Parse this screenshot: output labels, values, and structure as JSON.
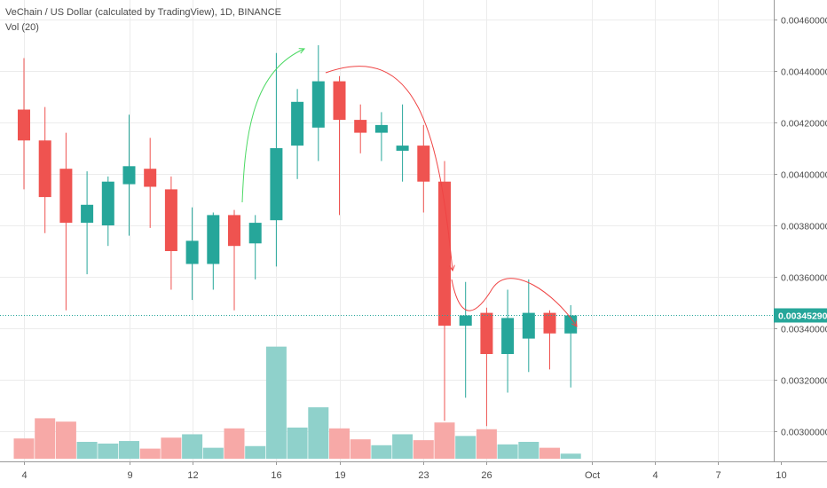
{
  "header": {
    "title": "VeChain / US Dollar (calculated by TradingView), 1D, BINANCE",
    "volume_label": "Vol (20)"
  },
  "colors": {
    "up": "#26a69a",
    "down": "#ef5350",
    "vol_up": "#8fd1cb",
    "vol_down": "#f7a9a7",
    "arrow_up": "#4cd964",
    "arrow_down": "#ef4444",
    "price_line": "#26a69a",
    "grid": "#ececec",
    "axis_text": "#4a4a4a"
  },
  "chart_data": {
    "type": "candlestick",
    "price_axis": {
      "ticks": [
        "0.00300000",
        "0.00320000",
        "0.00340000",
        "0.00360000",
        "0.00380000",
        "0.00400000",
        "0.00420000",
        "0.00440000",
        "0.00460000"
      ],
      "current_price": "0.00345290"
    },
    "x_axis": {
      "ticks": [
        {
          "label": "4",
          "day": 4
        },
        {
          "label": "9",
          "day": 9
        },
        {
          "label": "12",
          "day": 12
        },
        {
          "label": "16",
          "day": 16
        },
        {
          "label": "19",
          "day": 19
        },
        {
          "label": "23",
          "day": 23
        },
        {
          "label": "26",
          "day": 26
        },
        {
          "label": "Oct",
          "day": 31
        },
        {
          "label": "4",
          "day": 34
        },
        {
          "label": "7",
          "day": 37
        },
        {
          "label": "10",
          "day": 40
        }
      ]
    },
    "candles": [
      {
        "day": 4,
        "o": 0.00425,
        "h": 0.00445,
        "l": 0.00394,
        "c": 0.00413,
        "v": 2.4
      },
      {
        "day": 5,
        "o": 0.00413,
        "h": 0.00426,
        "l": 0.00377,
        "c": 0.00391,
        "v": 4.8
      },
      {
        "day": 6,
        "o": 0.00402,
        "h": 0.00416,
        "l": 0.00347,
        "c": 0.00381,
        "v": 4.4
      },
      {
        "day": 7,
        "o": 0.00381,
        "h": 0.00401,
        "l": 0.00361,
        "c": 0.00388,
        "v": 2.0
      },
      {
        "day": 8,
        "o": 0.0038,
        "h": 0.00399,
        "l": 0.00372,
        "c": 0.00397,
        "v": 1.8
      },
      {
        "day": 9,
        "o": 0.00396,
        "h": 0.00423,
        "l": 0.00376,
        "c": 0.00403,
        "v": 2.1
      },
      {
        "day": 10,
        "o": 0.00402,
        "h": 0.00414,
        "l": 0.00379,
        "c": 0.00395,
        "v": 1.2
      },
      {
        "day": 11,
        "o": 0.00394,
        "h": 0.00399,
        "l": 0.00355,
        "c": 0.0037,
        "v": 2.5
      },
      {
        "day": 12,
        "o": 0.00365,
        "h": 0.00387,
        "l": 0.00351,
        "c": 0.00374,
        "v": 2.9
      },
      {
        "day": 13,
        "o": 0.00365,
        "h": 0.00385,
        "l": 0.00355,
        "c": 0.00384,
        "v": 1.3
      },
      {
        "day": 14,
        "o": 0.00384,
        "h": 0.00386,
        "l": 0.00347,
        "c": 0.00372,
        "v": 3.6
      },
      {
        "day": 15,
        "o": 0.00373,
        "h": 0.00384,
        "l": 0.00359,
        "c": 0.00381,
        "v": 1.5
      },
      {
        "day": 16,
        "o": 0.00382,
        "h": 0.00447,
        "l": 0.00364,
        "c": 0.0041,
        "v": 13.3
      },
      {
        "day": 17,
        "o": 0.00411,
        "h": 0.00433,
        "l": 0.00398,
        "c": 0.00428,
        "v": 3.7
      },
      {
        "day": 18,
        "o": 0.00418,
        "h": 0.0045,
        "l": 0.00405,
        "c": 0.00436,
        "v": 6.1
      },
      {
        "day": 19,
        "o": 0.00436,
        "h": 0.00438,
        "l": 0.00384,
        "c": 0.00421,
        "v": 3.6
      },
      {
        "day": 20,
        "o": 0.00421,
        "h": 0.00427,
        "l": 0.00408,
        "c": 0.00416,
        "v": 2.3
      },
      {
        "day": 21,
        "o": 0.00416,
        "h": 0.00424,
        "l": 0.00405,
        "c": 0.00419,
        "v": 1.6
      },
      {
        "day": 22,
        "o": 0.00409,
        "h": 0.00427,
        "l": 0.00397,
        "c": 0.00411,
        "v": 2.9
      },
      {
        "day": 23,
        "o": 0.00411,
        "h": 0.00419,
        "l": 0.00385,
        "c": 0.00397,
        "v": 2.2
      },
      {
        "day": 24,
        "o": 0.00397,
        "h": 0.00405,
        "l": 0.00304,
        "c": 0.00341,
        "v": 4.3
      },
      {
        "day": 25,
        "o": 0.00341,
        "h": 0.00358,
        "l": 0.00313,
        "c": 0.00345,
        "v": 2.7
      },
      {
        "day": 26,
        "o": 0.00346,
        "h": 0.00348,
        "l": 0.00302,
        "c": 0.0033,
        "v": 3.5
      },
      {
        "day": 27,
        "o": 0.0033,
        "h": 0.00355,
        "l": 0.00315,
        "c": 0.00344,
        "v": 1.7
      },
      {
        "day": 28,
        "o": 0.00336,
        "h": 0.00359,
        "l": 0.00323,
        "c": 0.00346,
        "v": 2.0
      },
      {
        "day": 29,
        "o": 0.00346,
        "h": 0.00347,
        "l": 0.00324,
        "c": 0.00338,
        "v": 1.3
      },
      {
        "day": 30,
        "o": 0.00338,
        "h": 0.00349,
        "l": 0.00317,
        "c": 0.00345,
        "v": 0.6
      }
    ]
  }
}
